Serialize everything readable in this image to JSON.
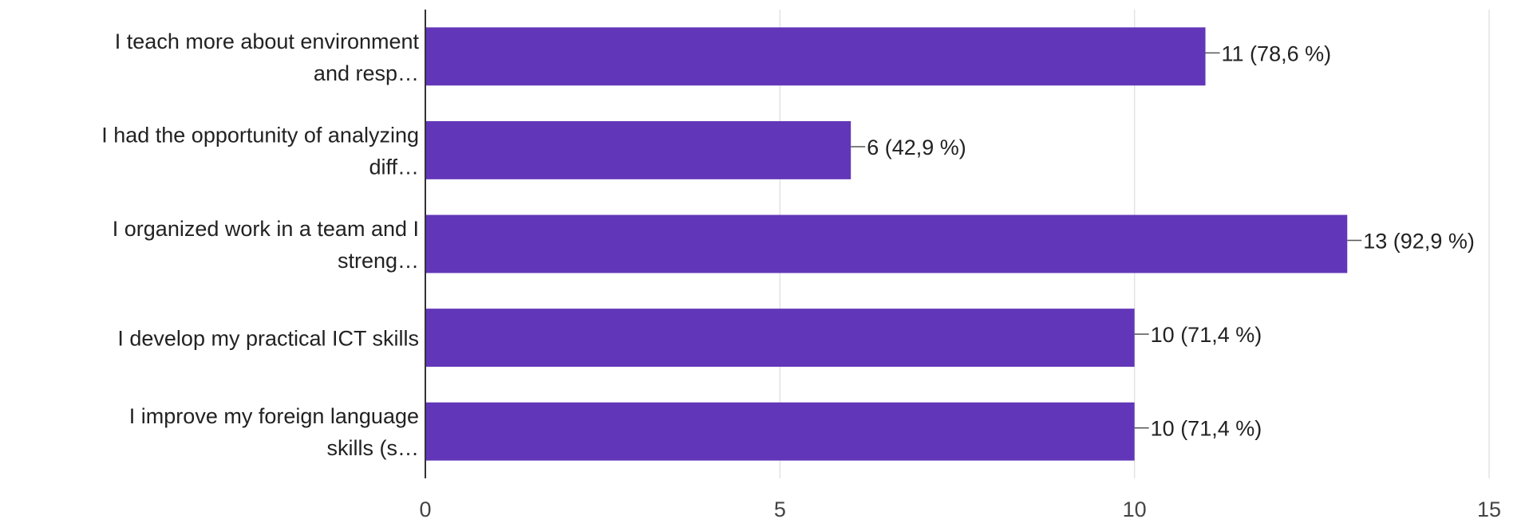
{
  "chart_data": {
    "type": "bar",
    "orientation": "horizontal",
    "categories": [
      [
        "I teach more about environment",
        "and resp…"
      ],
      [
        "I had the opportunity of analyzing",
        "diff…"
      ],
      [
        "I organized work in a team and I",
        "streng…"
      ],
      [
        "I develop my practical ICT skills"
      ],
      [
        "I improve my foreign language",
        "skills (s…"
      ]
    ],
    "values": [
      11,
      6,
      13,
      10,
      10
    ],
    "data_labels": [
      "11 (78,6 %)",
      "6 (42,9 %)",
      "13 (92,9 %)",
      "10 (71,4 %)",
      "10 (71,4 %)"
    ],
    "x_ticks": [
      0,
      5,
      10,
      15
    ],
    "xlim": [
      0,
      15
    ],
    "grid": true,
    "bar_color": "#6236b8",
    "title": "",
    "xlabel": "",
    "ylabel": ""
  }
}
